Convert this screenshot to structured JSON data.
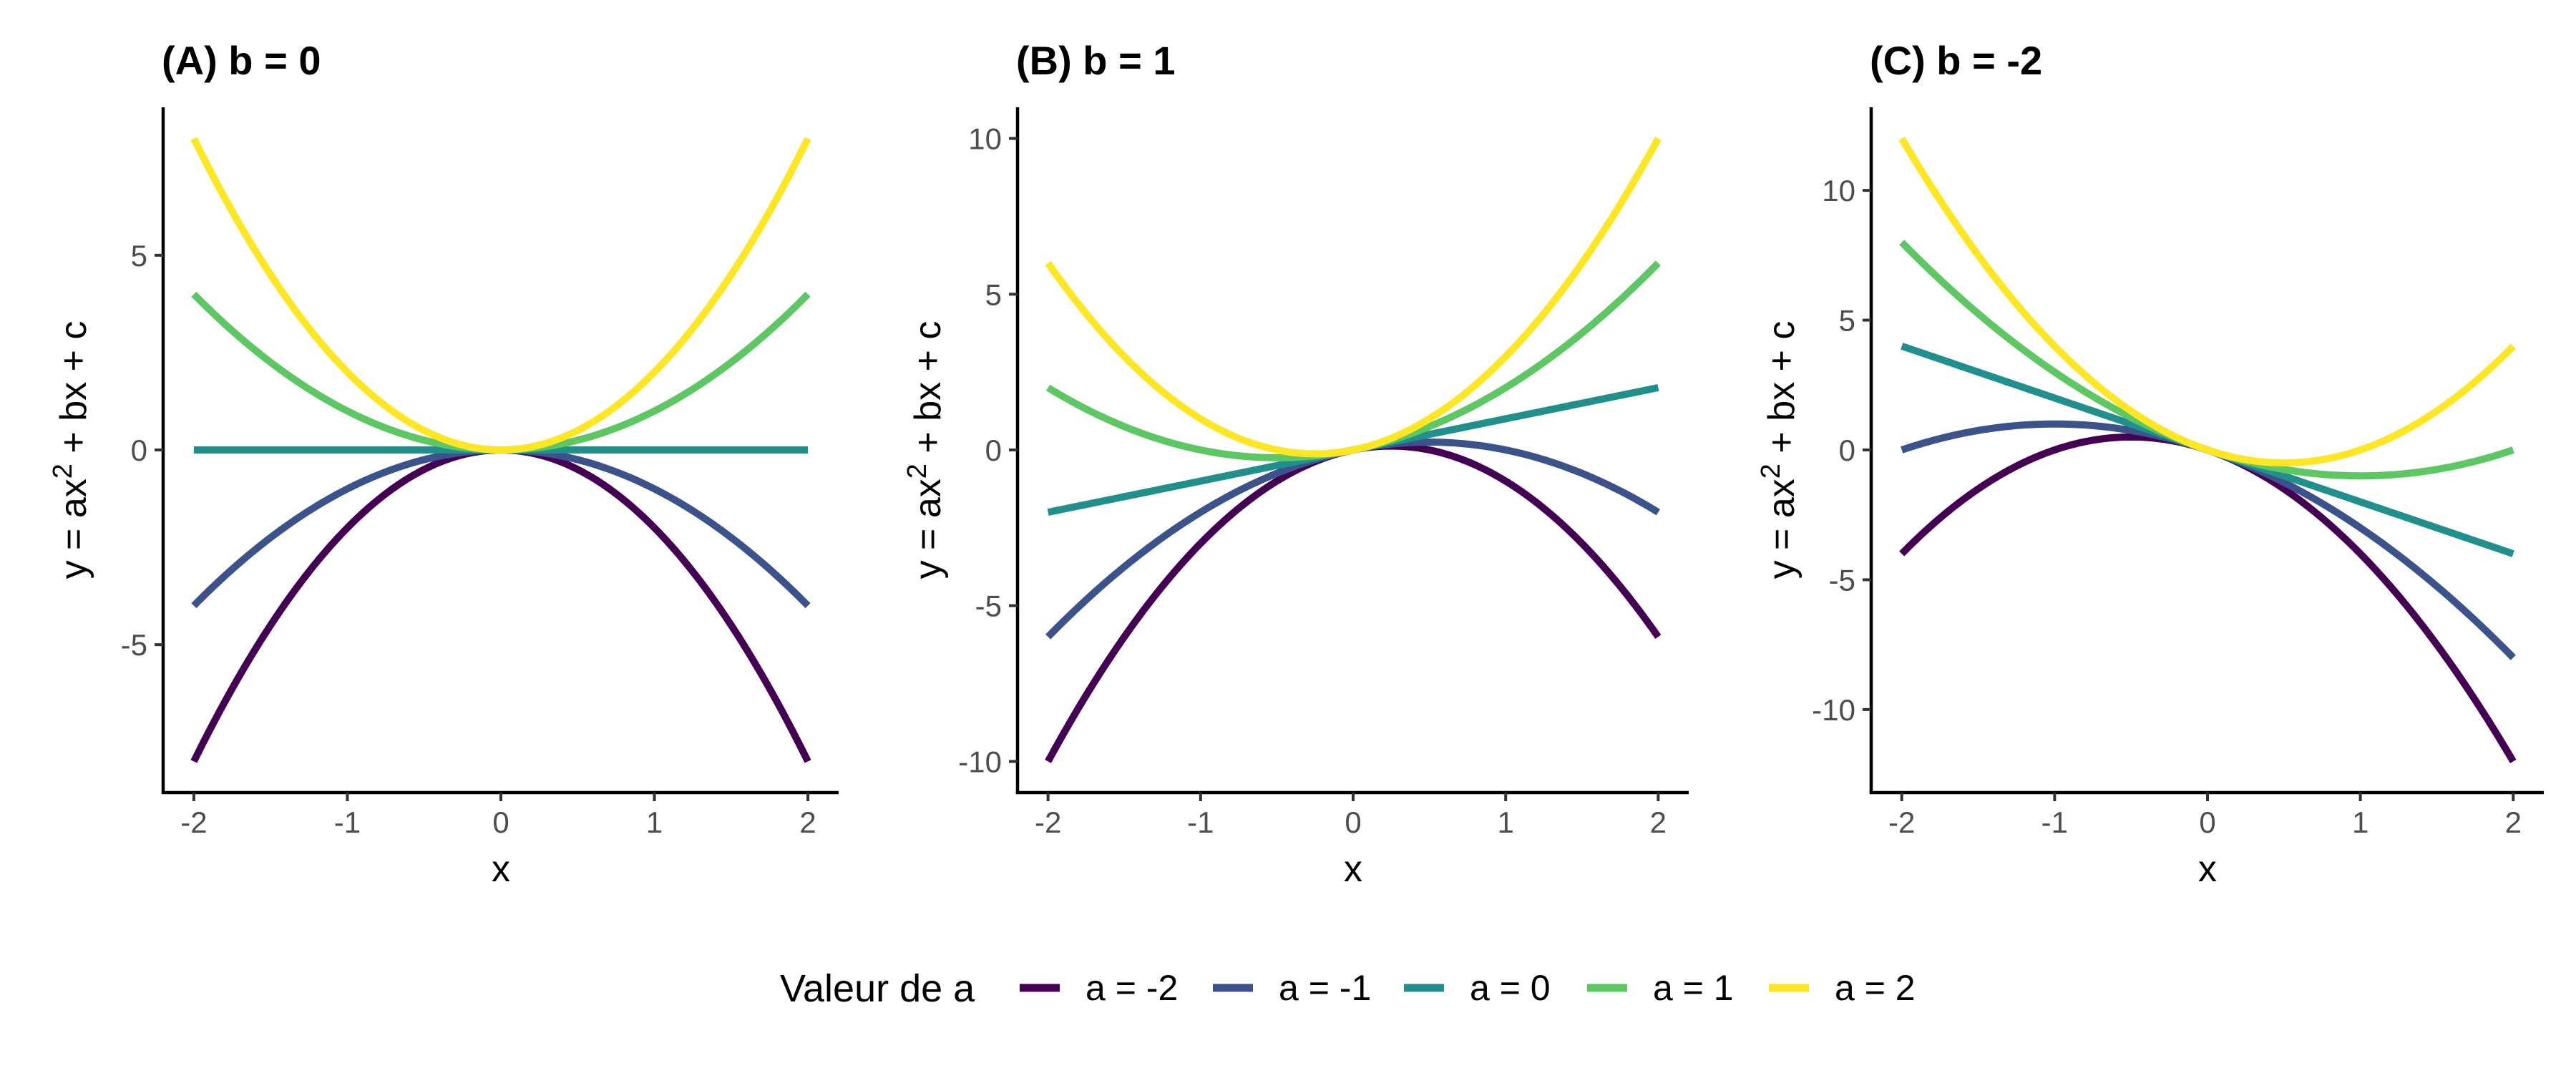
{
  "chart_data": [
    {
      "type": "line",
      "title": "(A) b = 0",
      "xlabel": "x",
      "ylabel": {
        "prefix": "y = ax",
        "sup": "2",
        "suffix": " + bx + c"
      },
      "xlim": [
        -2,
        2
      ],
      "ylim": [
        -8,
        8
      ],
      "xticks": [
        -2,
        -1,
        0,
        1,
        2
      ],
      "xtick_labels": [
        "-2",
        "-1",
        "0",
        "1",
        "2"
      ],
      "yticks": [
        -5,
        0,
        5
      ],
      "ytick_labels": [
        "-5",
        "0",
        "5"
      ],
      "grid": false,
      "b": 0,
      "c": 0,
      "x": [
        -2,
        -1,
        0,
        1,
        2
      ],
      "series": [
        {
          "name": "a = -2",
          "a": -2,
          "values": [
            -8,
            -2,
            0,
            -2,
            -8
          ]
        },
        {
          "name": "a = -1",
          "a": -1,
          "values": [
            -4,
            -1,
            0,
            -1,
            -4
          ]
        },
        {
          "name": "a = 0",
          "a": 0,
          "values": [
            0,
            0,
            0,
            0,
            0
          ]
        },
        {
          "name": "a = 1",
          "a": 1,
          "values": [
            4,
            1,
            0,
            1,
            4
          ]
        },
        {
          "name": "a = 2",
          "a": 2,
          "values": [
            8,
            2,
            0,
            2,
            8
          ]
        }
      ]
    },
    {
      "type": "line",
      "title": "(B) b = 1",
      "xlabel": "x",
      "ylabel": {
        "prefix": "y = ax",
        "sup": "2",
        "suffix": " + bx + c"
      },
      "xlim": [
        -2,
        2
      ],
      "ylim": [
        -10,
        10
      ],
      "xticks": [
        -2,
        -1,
        0,
        1,
        2
      ],
      "xtick_labels": [
        "-2",
        "-1",
        "0",
        "1",
        "2"
      ],
      "yticks": [
        -10,
        -5,
        0,
        5,
        10
      ],
      "ytick_labels": [
        "-10",
        "-5",
        "0",
        "5",
        "10"
      ],
      "grid": false,
      "b": 1,
      "c": 0,
      "x": [
        -2,
        -1,
        0,
        1,
        2
      ],
      "series": [
        {
          "name": "a = -2",
          "a": -2,
          "values": [
            -10,
            -3,
            0,
            -1,
            -6
          ]
        },
        {
          "name": "a = -1",
          "a": -1,
          "values": [
            -6,
            -2,
            0,
            0,
            -2
          ]
        },
        {
          "name": "a = 0",
          "a": 0,
          "values": [
            -2,
            -1,
            0,
            1,
            2
          ]
        },
        {
          "name": "a = 1",
          "a": 1,
          "values": [
            2,
            0,
            0,
            2,
            6
          ]
        },
        {
          "name": "a = 2",
          "a": 2,
          "values": [
            6,
            1,
            0,
            3,
            10
          ]
        }
      ]
    },
    {
      "type": "line",
      "title": "(C) b = -2",
      "xlabel": "x",
      "ylabel": {
        "prefix": "y = ax",
        "sup": "2",
        "suffix": " + bx + c"
      },
      "xlim": [
        -2,
        2
      ],
      "ylim": [
        -12,
        12
      ],
      "xticks": [
        -2,
        -1,
        0,
        1,
        2
      ],
      "xtick_labels": [
        "-2",
        "-1",
        "0",
        "1",
        "2"
      ],
      "yticks": [
        -10,
        -5,
        0,
        5,
        10
      ],
      "ytick_labels": [
        "-10",
        "-5",
        "0",
        "5",
        "10"
      ],
      "grid": false,
      "b": -2,
      "c": 0,
      "x": [
        -2,
        -1,
        0,
        1,
        2
      ],
      "series": [
        {
          "name": "a = -2",
          "a": -2,
          "values": [
            -4,
            0,
            0,
            -4,
            -12
          ]
        },
        {
          "name": "a = -1",
          "a": -1,
          "values": [
            0,
            1,
            0,
            -3,
            -8
          ]
        },
        {
          "name": "a = 0",
          "a": 0,
          "values": [
            4,
            2,
            0,
            -2,
            -4
          ]
        },
        {
          "name": "a = 1",
          "a": 1,
          "values": [
            8,
            3,
            0,
            -1,
            0
          ]
        },
        {
          "name": "a = 2",
          "a": 2,
          "values": [
            12,
            4,
            0,
            0,
            4
          ]
        }
      ]
    }
  ],
  "legend": {
    "title": "Valeur de a",
    "placement": "bottom",
    "items": [
      {
        "label": "a = -2",
        "color": "#440154"
      },
      {
        "label": "a = -1",
        "color": "#3B528B"
      },
      {
        "label": "a = 0",
        "color": "#21908C"
      },
      {
        "label": "a = 1",
        "color": "#5DC863"
      },
      {
        "label": "a = 2",
        "color": "#FDE725"
      }
    ]
  }
}
